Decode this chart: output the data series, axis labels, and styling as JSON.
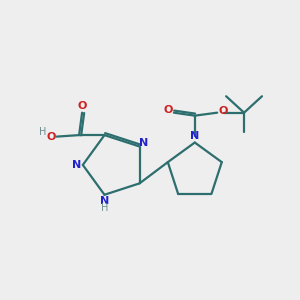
{
  "bg_color": "#eeeeee",
  "bond_color": "#2d6e6e",
  "N_color": "#2222cc",
  "O_color": "#cc2222",
  "H_color": "#6e8e8e",
  "line_width": 1.6,
  "fig_width": 3.0,
  "fig_height": 3.0,
  "xlim": [
    0,
    10
  ],
  "ylim": [
    0,
    10
  ]
}
